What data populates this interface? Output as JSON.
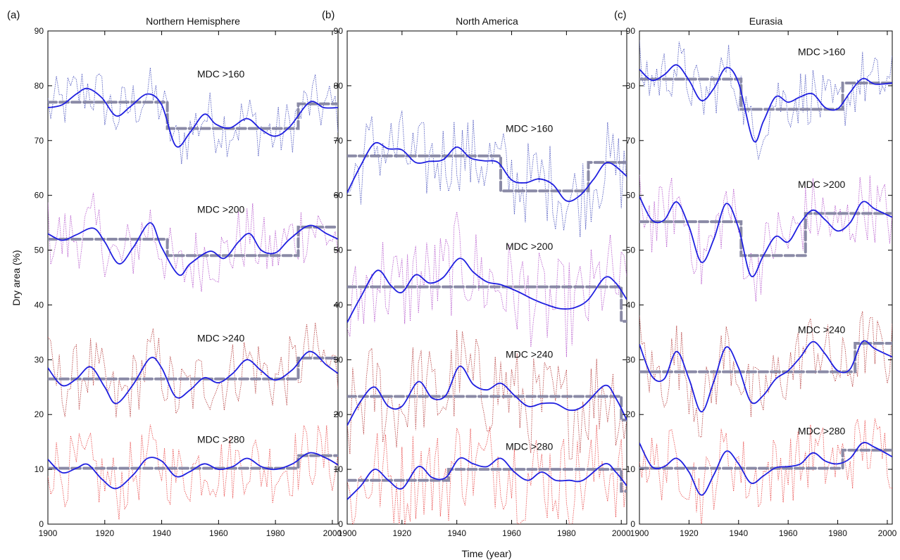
{
  "figure": {
    "ylabel": "Dry area (%)",
    "xlabel": "Time (year)"
  },
  "colors": {
    "smooth": "#1f1fe0",
    "step": "#8a8aa6",
    "MDC >160": "#3a44b8",
    "MDC >200": "#b04ac8",
    "MDC >240": "#b03030",
    "MDC >280": "#e84040"
  },
  "chart_data": [
    {
      "type": "line",
      "panel": "(a)",
      "title": "Northern Hemisphere",
      "xlim": [
        1900,
        2002
      ],
      "ylim": [
        0,
        90
      ],
      "xticks": [
        1900,
        1920,
        1940,
        1960,
        1980,
        2000
      ],
      "yticks": [
        0,
        10,
        20,
        30,
        40,
        50,
        60,
        70,
        80,
        90
      ],
      "series": [
        {
          "name": "MDC >160",
          "smooth": {
            "x": [
              1900,
              1905,
              1910,
              1914,
              1919,
              1924,
              1929,
              1935,
              1940,
              1945,
              1950,
              1955,
              1959,
              1964,
              1970,
              1975,
              1980,
              1985,
              1992,
              1997,
              2002
            ],
            "y": [
              76,
              76.5,
              78.5,
              79.5,
              77.8,
              74.5,
              76.2,
              78.5,
              76.5,
              69.0,
              71.5,
              74.8,
              73.0,
              72.3,
              74.0,
              72.0,
              70.8,
              72.5,
              77.0,
              76.0,
              76.0
            ]
          },
          "steps": [
            {
              "x0": 1900,
              "x1": 1942,
              "y": 77.0
            },
            {
              "x0": 1942,
              "x1": 1988,
              "y": 72.2
            },
            {
              "x0": 1988,
              "x1": 2002,
              "y": 76.7
            }
          ]
        },
        {
          "name": "MDC >200",
          "smooth": {
            "x": [
              1900,
              1905,
              1910,
              1916,
              1920,
              1925,
              1930,
              1936,
              1940,
              1946,
              1950,
              1957,
              1962,
              1967,
              1971,
              1975,
              1980,
              1985,
              1992,
              1998,
              2002
            ],
            "y": [
              53,
              51.8,
              52.8,
              54.0,
              51.5,
              47.5,
              50.5,
              55.0,
              50.5,
              45.5,
              47.5,
              49.8,
              48.5,
              51.5,
              53.0,
              50.0,
              49.5,
              52.0,
              54.5,
              53.0,
              52.0
            ]
          },
          "steps": [
            {
              "x0": 1900,
              "x1": 1942,
              "y": 52.0
            },
            {
              "x0": 1942,
              "x1": 1988,
              "y": 49.0
            },
            {
              "x0": 1988,
              "x1": 2002,
              "y": 54.2
            }
          ]
        },
        {
          "name": "MDC >240",
          "smooth": {
            "x": [
              1900,
              1905,
              1910,
              1915,
              1920,
              1924,
              1930,
              1936,
              1940,
              1945,
              1950,
              1955,
              1960,
              1965,
              1970,
              1975,
              1980,
              1986,
              1992,
              1998,
              2002
            ],
            "y": [
              28.5,
              25.3,
              26.5,
              28.7,
              25.0,
              22.0,
              25.5,
              30.3,
              28.5,
              23.2,
              24.5,
              26.7,
              25.8,
              27.5,
              30.0,
              28.0,
              26.3,
              28.2,
              31.5,
              29.0,
              27.5
            ]
          },
          "steps": [
            {
              "x0": 1900,
              "x1": 1988,
              "y": 26.5
            },
            {
              "x0": 1988,
              "x1": 2002,
              "y": 30.3
            }
          ]
        },
        {
          "name": "MDC >280",
          "smooth": {
            "x": [
              1900,
              1905,
              1910,
              1914,
              1919,
              1924,
              1930,
              1935,
              1940,
              1945,
              1950,
              1955,
              1960,
              1965,
              1970,
              1975,
              1980,
              1986,
              1992,
              1998,
              2002
            ],
            "y": [
              11.8,
              9.4,
              10.2,
              10.9,
              8.2,
              6.5,
              9.0,
              12.0,
              11.5,
              8.7,
              9.6,
              11.0,
              10.0,
              10.5,
              12.0,
              10.5,
              10.0,
              11.0,
              13.0,
              12.0,
              10.8
            ]
          },
          "steps": [
            {
              "x0": 1900,
              "x1": 1988,
              "y": 10.2
            },
            {
              "x0": 1988,
              "x1": 2002,
              "y": 12.5
            }
          ]
        }
      ]
    },
    {
      "type": "line",
      "panel": "(b)",
      "title": "North America",
      "xlim": [
        1900,
        2002
      ],
      "ylim": [
        0,
        90
      ],
      "xticks": [
        1900,
        1920,
        1940,
        1960,
        1980,
        2000
      ],
      "yticks": [
        0,
        10,
        20,
        30,
        40,
        50,
        60,
        70,
        80,
        90
      ],
      "series": [
        {
          "name": "MDC >160",
          "smooth": {
            "x": [
              1900,
              1905,
              1910,
              1915,
              1920,
              1925,
              1930,
              1935,
              1940,
              1945,
              1950,
              1955,
              1960,
              1965,
              1970,
              1975,
              1980,
              1985,
              1990,
              1995,
              2002
            ],
            "y": [
              60.5,
              65.5,
              69.5,
              68.5,
              68.3,
              66.0,
              66.2,
              66.5,
              68.8,
              66.8,
              66.3,
              66.0,
              62.8,
              62.3,
              63.0,
              62.0,
              59.0,
              60.0,
              63.0,
              66.0,
              63.5
            ]
          },
          "steps": [
            {
              "x0": 1900,
              "x1": 1956,
              "y": 67.2
            },
            {
              "x0": 1956,
              "x1": 1988,
              "y": 60.8
            },
            {
              "x0": 1988,
              "x1": 2002,
              "y": 66.0
            }
          ]
        },
        {
          "name": "MDC >200",
          "smooth": {
            "x": [
              1900,
              1905,
              1911,
              1916,
              1920,
              1925,
              1930,
              1935,
              1941,
              1946,
              1951,
              1956,
              1962,
              1968,
              1973,
              1978,
              1983,
              1988,
              1994,
              1998,
              2002
            ],
            "y": [
              36.8,
              41.5,
              46.3,
              43.5,
              42.3,
              45.5,
              44.0,
              45.0,
              48.5,
              46.0,
              44.2,
              43.7,
              42.5,
              41.0,
              40.0,
              39.3,
              39.5,
              41.0,
              45.0,
              44.0,
              41.0
            ]
          },
          "steps": [
            {
              "x0": 1900,
              "x1": 2000,
              "y": 43.3
            },
            {
              "x0": 2000,
              "x1": 2002,
              "y": 37.0
            }
          ]
        },
        {
          "name": "MDC >240",
          "smooth": {
            "x": [
              1900,
              1905,
              1910,
              1915,
              1920,
              1926,
              1931,
              1936,
              1941,
              1946,
              1951,
              1956,
              1961,
              1966,
              1971,
              1976,
              1981,
              1986,
              1994,
              1998,
              2002
            ],
            "y": [
              18.0,
              22.5,
              25.0,
              21.5,
              21.5,
              26.0,
              23.0,
              23.5,
              28.8,
              25.5,
              24.5,
              25.7,
              23.5,
              21.5,
              22.0,
              22.0,
              20.8,
              21.5,
              25.3,
              23.0,
              19.0
            ]
          },
          "steps": [
            {
              "x0": 1900,
              "x1": 2000,
              "y": 23.3
            },
            {
              "x0": 2000,
              "x1": 2002,
              "y": 19.0
            }
          ]
        },
        {
          "name": "MDC >280",
          "smooth": {
            "x": [
              1900,
              1905,
              1910,
              1915,
              1920,
              1926,
              1931,
              1936,
              1941,
              1946,
              1951,
              1956,
              1961,
              1966,
              1971,
              1976,
              1981,
              1986,
              1994,
              1998,
              2002
            ],
            "y": [
              4.5,
              7.0,
              10.0,
              8.0,
              6.5,
              10.5,
              8.5,
              8.5,
              12.0,
              11.0,
              10.5,
              12.0,
              9.5,
              8.0,
              9.5,
              8.0,
              8.0,
              8.0,
              11.0,
              9.5,
              7.0
            ]
          },
          "steps": [
            {
              "x0": 1900,
              "x1": 1937,
              "y": 8.0
            },
            {
              "x0": 1937,
              "x1": 2000,
              "y": 10.0
            },
            {
              "x0": 2000,
              "x1": 2002,
              "y": 6.0
            }
          ]
        }
      ]
    },
    {
      "type": "line",
      "panel": "(c)",
      "title": "Eurasia",
      "xlim": [
        1900,
        2002
      ],
      "ylim": [
        0,
        90
      ],
      "xticks": [
        1900,
        1920,
        1940,
        1960,
        1980,
        2000
      ],
      "yticks": [
        0,
        10,
        20,
        30,
        40,
        50,
        60,
        70,
        80,
        90
      ],
      "series": [
        {
          "name": "MDC >160",
          "smooth": {
            "x": [
              1900,
              1905,
              1910,
              1915,
              1920,
              1925,
              1930,
              1935,
              1940,
              1946,
              1950,
              1955,
              1960,
              1965,
              1970,
              1975,
              1980,
              1985,
              1990,
              1995,
              2002
            ],
            "y": [
              83.0,
              81.0,
              82.0,
              83.8,
              81.0,
              77.3,
              79.5,
              83.3,
              80.5,
              70.0,
              73.5,
              78.0,
              77.0,
              78.0,
              78.5,
              76.0,
              75.8,
              78.8,
              81.3,
              80.3,
              80.5
            ]
          },
          "steps": [
            {
              "x0": 1900,
              "x1": 1941,
              "y": 81.2
            },
            {
              "x0": 1941,
              "x1": 1982,
              "y": 75.7
            },
            {
              "x0": 1982,
              "x1": 2002,
              "y": 80.5
            }
          ]
        },
        {
          "name": "MDC >200",
          "smooth": {
            "x": [
              1900,
              1905,
              1910,
              1915,
              1920,
              1925,
              1930,
              1935,
              1940,
              1945,
              1950,
              1955,
              1960,
              1965,
              1970,
              1975,
              1980,
              1985,
              1990,
              1995,
              2002
            ],
            "y": [
              59.8,
              55.5,
              55.5,
              58.8,
              54.3,
              47.8,
              52.0,
              58.5,
              54.0,
              45.3,
              49.0,
              52.5,
              51.5,
              55.0,
              57.3,
              55.5,
              53.5,
              55.0,
              58.8,
              57.5,
              56.0
            ]
          },
          "steps": [
            {
              "x0": 1900,
              "x1": 1941,
              "y": 55.2
            },
            {
              "x0": 1941,
              "x1": 1967,
              "y": 49.0
            },
            {
              "x0": 1967,
              "x1": 2002,
              "y": 56.7
            }
          ]
        },
        {
          "name": "MDC >240",
          "smooth": {
            "x": [
              1900,
              1905,
              1910,
              1915,
              1920,
              1925,
              1930,
              1935,
              1940,
              1945,
              1950,
              1955,
              1960,
              1965,
              1970,
              1975,
              1980,
              1985,
              1990,
              1995,
              2002
            ],
            "y": [
              32.8,
              27.0,
              26.5,
              31.5,
              26.5,
              20.5,
              26.0,
              32.3,
              28.5,
              22.3,
              23.5,
              26.5,
              28.0,
              30.5,
              33.3,
              31.0,
              28.0,
              28.3,
              33.3,
              32.0,
              30.5
            ]
          },
          "steps": [
            {
              "x0": 1900,
              "x1": 1987,
              "y": 27.8
            },
            {
              "x0": 1987,
              "x1": 2002,
              "y": 33.0
            }
          ]
        },
        {
          "name": "MDC >280",
          "smooth": {
            "x": [
              1900,
              1905,
              1910,
              1915,
              1920,
              1925,
              1930,
              1935,
              1940,
              1945,
              1950,
              1955,
              1960,
              1965,
              1970,
              1975,
              1980,
              1985,
              1990,
              1995,
              2002
            ],
            "y": [
              14.8,
              10.5,
              10.5,
              12.0,
              9.5,
              5.3,
              9.0,
              13.3,
              11.0,
              7.5,
              8.8,
              10.3,
              10.5,
              11.0,
              13.0,
              11.5,
              11.0,
              12.0,
              14.8,
              14.0,
              12.3
            ]
          },
          "steps": [
            {
              "x0": 1900,
              "x1": 1982,
              "y": 10.2
            },
            {
              "x0": 1982,
              "x1": 2002,
              "y": 13.5
            }
          ]
        }
      ]
    }
  ]
}
